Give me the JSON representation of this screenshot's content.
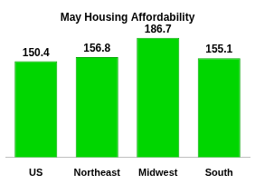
{
  "chart_data": {
    "type": "bar",
    "title": "May Housing Affordability",
    "categories": [
      "US",
      "Northeast",
      "Midwest",
      "South"
    ],
    "values": [
      150.4,
      156.8,
      186.7,
      155.1
    ],
    "color": "#00d600",
    "ylim": [
      0,
      200
    ],
    "grid": false,
    "data_labels": true,
    "tick_labels": "x"
  }
}
